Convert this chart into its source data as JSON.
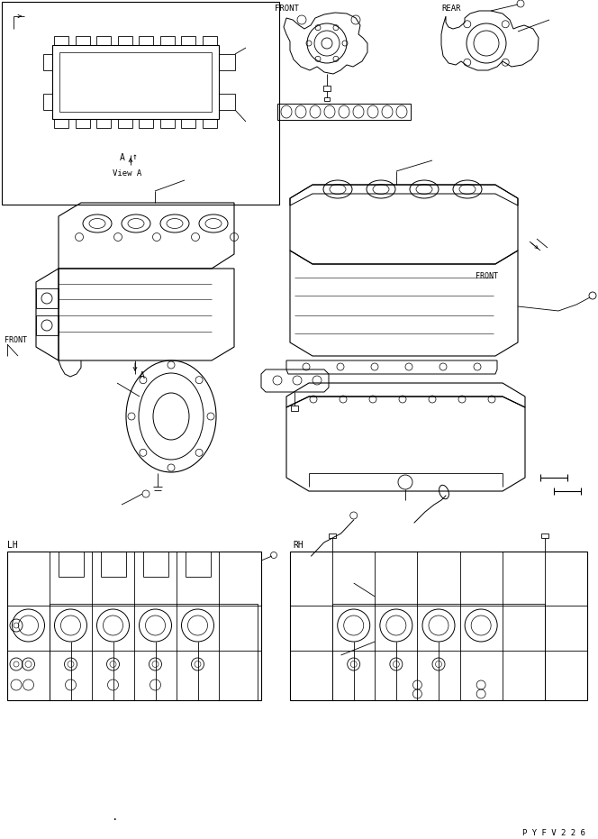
{
  "bg_color": "#ffffff",
  "line_color": "#000000",
  "part_number": "P Y F V 2 2 6",
  "fig_width": 6.64,
  "fig_height": 9.31,
  "dpi": 100,
  "labels": {
    "front_top_center": "FRONT",
    "rear_top": "REAR",
    "front_mid_left": "FRONT",
    "front_mid_right": "FRONT",
    "view_a": "View A",
    "a_label": "A",
    "lh": "LH",
    "rh": "RH"
  }
}
